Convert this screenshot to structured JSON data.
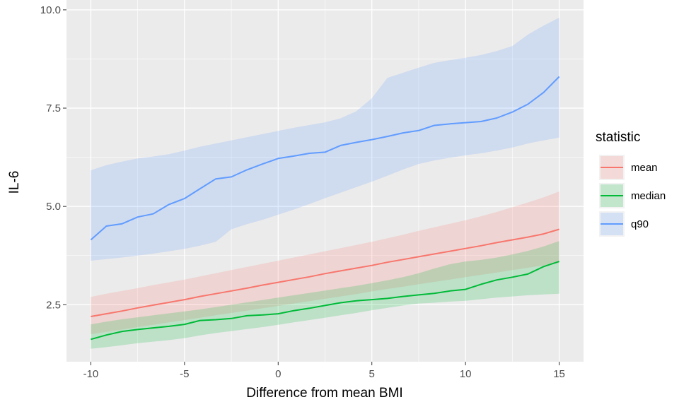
{
  "chart_data": {
    "type": "line",
    "xlabel": "Difference from mean BMI",
    "ylabel": "IL-6",
    "xlim": [
      -11.3,
      16.3
    ],
    "ylim": [
      1.05,
      10.25
    ],
    "x_ticks": [
      -10,
      -5,
      0,
      5,
      10,
      15
    ],
    "x_tick_labels": [
      "-10",
      "-5",
      "0",
      "5",
      "10",
      "15"
    ],
    "y_ticks": [
      2.5,
      5.0,
      7.5,
      10.0
    ],
    "y_tick_labels": [
      "2.5",
      "5.0",
      "7.5",
      "10.0"
    ],
    "grid": true,
    "background": "#ebebeb",
    "legend": {
      "title": "statistic",
      "placement": "right"
    },
    "x": [
      -10,
      -9.17,
      -8.33,
      -7.5,
      -6.67,
      -5.83,
      -5,
      -4.17,
      -3.33,
      -2.5,
      -1.67,
      -0.83,
      0,
      0.83,
      1.67,
      2.5,
      3.33,
      4.17,
      5,
      5.83,
      6.67,
      7.5,
      8.33,
      9.17,
      10,
      10.83,
      11.67,
      12.5,
      13.33,
      14.17,
      15
    ],
    "series": [
      {
        "name": "mean",
        "color": "#f8766d",
        "values": [
          2.2,
          2.27,
          2.34,
          2.42,
          2.49,
          2.56,
          2.63,
          2.71,
          2.78,
          2.85,
          2.92,
          3.0,
          3.07,
          3.14,
          3.21,
          3.29,
          3.36,
          3.43,
          3.5,
          3.58,
          3.65,
          3.72,
          3.79,
          3.86,
          3.93,
          4.0,
          4.08,
          4.15,
          4.22,
          4.3,
          4.42
        ],
        "lower": [
          1.75,
          1.81,
          1.87,
          1.93,
          1.99,
          2.05,
          2.11,
          2.17,
          2.23,
          2.29,
          2.35,
          2.41,
          2.47,
          2.53,
          2.59,
          2.65,
          2.71,
          2.77,
          2.84,
          2.9,
          2.96,
          3.02,
          3.08,
          3.14,
          3.2,
          3.26,
          3.32,
          3.38,
          3.44,
          3.5,
          3.56
        ],
        "upper": [
          2.7,
          2.78,
          2.85,
          2.92,
          3.0,
          3.07,
          3.14,
          3.22,
          3.3,
          3.38,
          3.46,
          3.54,
          3.62,
          3.7,
          3.78,
          3.86,
          3.94,
          4.02,
          4.1,
          4.19,
          4.28,
          4.38,
          4.47,
          4.56,
          4.65,
          4.75,
          4.86,
          4.98,
          5.1,
          5.23,
          5.38
        ]
      },
      {
        "name": "median",
        "color": "#00ba38",
        "values": [
          1.62,
          1.73,
          1.82,
          1.87,
          1.91,
          1.95,
          2.0,
          2.1,
          2.12,
          2.15,
          2.22,
          2.24,
          2.27,
          2.35,
          2.41,
          2.48,
          2.55,
          2.6,
          2.63,
          2.66,
          2.71,
          2.75,
          2.79,
          2.85,
          2.89,
          3.02,
          3.13,
          3.2,
          3.28,
          3.47,
          3.6
        ],
        "lower": [
          1.38,
          1.42,
          1.47,
          1.52,
          1.56,
          1.6,
          1.65,
          1.72,
          1.78,
          1.83,
          1.88,
          1.93,
          1.99,
          2.05,
          2.11,
          2.17,
          2.23,
          2.29,
          2.36,
          2.42,
          2.48,
          2.53,
          2.55,
          2.58,
          2.6,
          2.64,
          2.68,
          2.71,
          2.74,
          2.76,
          2.78
        ],
        "upper": [
          2.0,
          2.07,
          2.13,
          2.18,
          2.23,
          2.28,
          2.33,
          2.38,
          2.44,
          2.5,
          2.56,
          2.62,
          2.68,
          2.74,
          2.8,
          2.86,
          2.92,
          2.98,
          3.05,
          3.12,
          3.2,
          3.3,
          3.42,
          3.53,
          3.6,
          3.64,
          3.7,
          3.78,
          3.87,
          3.98,
          4.12
        ]
      },
      {
        "name": "q90",
        "color": "#619cff",
        "values": [
          4.15,
          4.5,
          4.56,
          4.73,
          4.81,
          5.05,
          5.2,
          5.45,
          5.7,
          5.75,
          5.93,
          6.08,
          6.22,
          6.28,
          6.35,
          6.38,
          6.55,
          6.63,
          6.7,
          6.78,
          6.87,
          6.93,
          7.06,
          7.1,
          7.13,
          7.16,
          7.25,
          7.4,
          7.6,
          7.9,
          8.3
        ],
        "lower": [
          3.62,
          3.66,
          3.7,
          3.75,
          3.8,
          3.86,
          3.92,
          4.0,
          4.1,
          4.42,
          4.55,
          4.66,
          4.79,
          4.92,
          5.06,
          5.21,
          5.35,
          5.49,
          5.63,
          5.78,
          5.94,
          6.08,
          6.17,
          6.24,
          6.3,
          6.35,
          6.42,
          6.5,
          6.6,
          6.68,
          6.75
        ],
        "upper": [
          5.92,
          6.05,
          6.14,
          6.22,
          6.27,
          6.33,
          6.42,
          6.52,
          6.6,
          6.68,
          6.76,
          6.84,
          6.92,
          7.0,
          7.07,
          7.14,
          7.24,
          7.42,
          7.75,
          8.27,
          8.4,
          8.53,
          8.65,
          8.72,
          8.78,
          8.85,
          8.95,
          9.08,
          9.37,
          9.6,
          9.8
        ]
      }
    ]
  }
}
